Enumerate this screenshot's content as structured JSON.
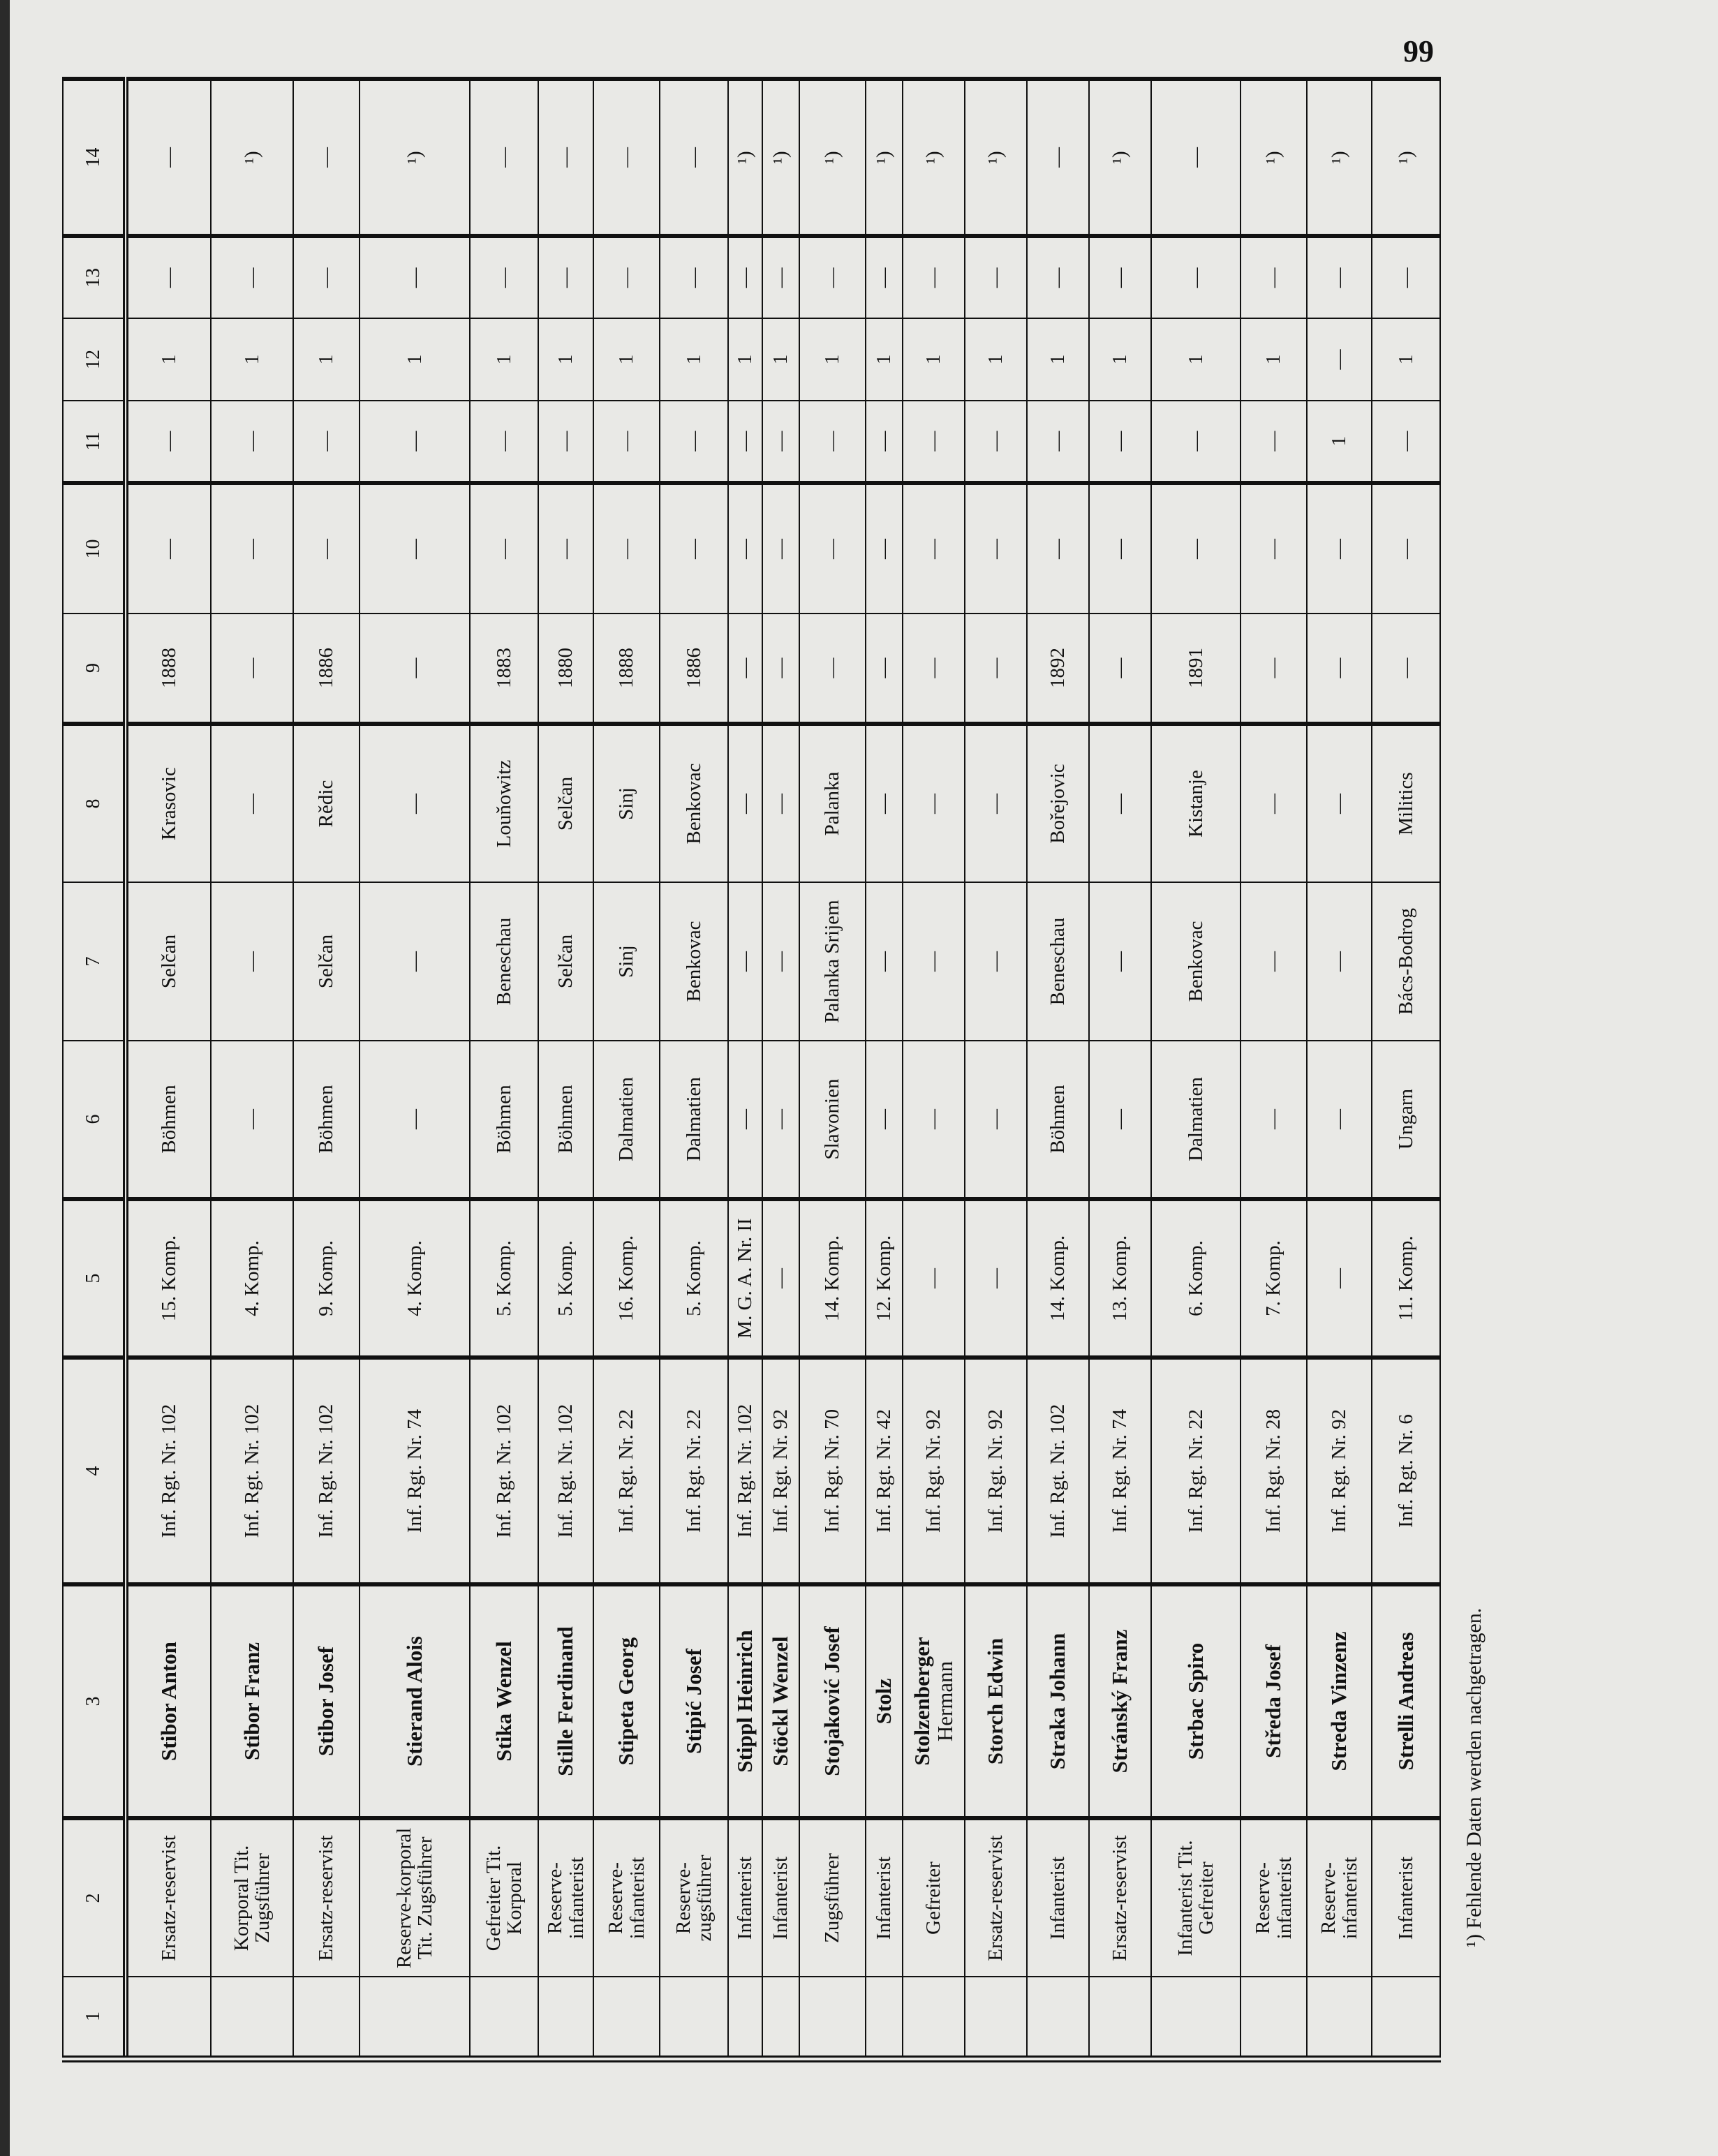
{
  "page_number": "99",
  "columns": [
    "1",
    "2",
    "3",
    "4",
    "5",
    "6",
    "7",
    "8",
    "9",
    "10",
    "11",
    "12",
    "13",
    "14"
  ],
  "rows": [
    [
      "",
      "Ersatz-reservist",
      "Stibor Anton",
      "Inf. Rgt. Nr. 102",
      "15. Komp.",
      "Böhmen",
      "Selčan",
      "Krasovic",
      "1888",
      "—",
      "—",
      "1",
      "—",
      "—"
    ],
    [
      "",
      "Korporal Tit. Zugsführer",
      "Stibor Franz",
      "Inf. Rgt. Nr. 102",
      "4. Komp.",
      "—",
      "—",
      "—",
      "—",
      "—",
      "—",
      "1",
      "—",
      "¹)"
    ],
    [
      "",
      "Ersatz-reservist",
      "Stibor Josef",
      "Inf. Rgt. Nr. 102",
      "9. Komp.",
      "Böhmen",
      "Selčan",
      "Rědic",
      "1886",
      "—",
      "—",
      "1",
      "—",
      "—"
    ],
    [
      "",
      "Reserve-korporal Tit. Zugsführer",
      "Stierand Alois",
      "Inf. Rgt. Nr. 74",
      "4. Komp.",
      "—",
      "—",
      "—",
      "—",
      "—",
      "—",
      "1",
      "—",
      "¹)"
    ],
    [
      "",
      "Gefreiter Tit. Korporal",
      "Stika Wenzel",
      "Inf. Rgt. Nr. 102",
      "5. Komp.",
      "Böhmen",
      "Beneschau",
      "Louňowitz",
      "1883",
      "—",
      "—",
      "1",
      "—",
      "—"
    ],
    [
      "",
      "Reserve-infanterist",
      "Stille Ferdinand",
      "Inf. Rgt. Nr. 102",
      "5. Komp.",
      "Böhmen",
      "Selčan",
      "Selčan",
      "1880",
      "—",
      "—",
      "1",
      "—",
      "—"
    ],
    [
      "",
      "Reserve-infanterist",
      "Stipeta Georg",
      "Inf. Rgt. Nr. 22",
      "16. Komp.",
      "Dalmatien",
      "Sinj",
      "Sinj",
      "1888",
      "—",
      "—",
      "1",
      "—",
      "—"
    ],
    [
      "",
      "Reserve-zugsführer",
      "Stipić Josef",
      "Inf. Rgt. Nr. 22",
      "5. Komp.",
      "Dalmatien",
      "Benkovac",
      "Benkovac",
      "1886",
      "—",
      "—",
      "1",
      "—",
      "—"
    ],
    [
      "",
      "Infanterist",
      "Stippl Heinrich",
      "Inf. Rgt. Nr. 102",
      "M. G. A. Nr. II",
      "—",
      "—",
      "—",
      "—",
      "—",
      "—",
      "1",
      "—",
      "¹)"
    ],
    [
      "",
      "Infanterist",
      "Stöckl Wenzel",
      "Inf. Rgt. Nr. 92",
      "—",
      "—",
      "—",
      "—",
      "—",
      "—",
      "—",
      "1",
      "—",
      "¹)"
    ],
    [
      "",
      "Zugsführer",
      "Stojaković Josef",
      "Inf. Rgt. Nr. 70",
      "14. Komp.",
      "Slavonien",
      "Palanka Srijem",
      "Palanka",
      "—",
      "—",
      "—",
      "1",
      "—",
      "¹)"
    ],
    [
      "",
      "Infanterist",
      "Stolz",
      "Inf. Rgt. Nr. 42",
      "12. Komp.",
      "—",
      "—",
      "—",
      "—",
      "—",
      "—",
      "1",
      "—",
      "¹)"
    ],
    [
      "",
      "Gefreiter",
      "Stolzenberger|Hermann",
      "Inf. Rgt. Nr. 92",
      "—",
      "—",
      "—",
      "—",
      "—",
      "—",
      "—",
      "1",
      "—",
      "¹)"
    ],
    [
      "",
      "Ersatz-reservist",
      "Storch Edwin",
      "Inf. Rgt. Nr. 92",
      "—",
      "—",
      "—",
      "—",
      "—",
      "—",
      "—",
      "1",
      "—",
      "¹)"
    ],
    [
      "",
      "Infanterist",
      "Straka Johann",
      "Inf. Rgt. Nr. 102",
      "14. Komp.",
      "Böhmen",
      "Beneschau",
      "Bořejovic",
      "1892",
      "—",
      "—",
      "1",
      "—",
      "—"
    ],
    [
      "",
      "Ersatz-reservist",
      "Stránský Franz",
      "Inf. Rgt. Nr. 74",
      "13. Komp.",
      "—",
      "—",
      "—",
      "—",
      "—",
      "—",
      "1",
      "—",
      "¹)"
    ],
    [
      "",
      "Infanterist Tit. Gefreiter",
      "Strbac Spiro",
      "Inf. Rgt. Nr. 22",
      "6. Komp.",
      "Dalmatien",
      "Benkovac",
      "Kistanje",
      "1891",
      "—",
      "—",
      "1",
      "—",
      "—"
    ],
    [
      "",
      "Reserve-infanterist",
      "Středa Josef",
      "Inf. Rgt. Nr. 28",
      "7. Komp.",
      "—",
      "—",
      "—",
      "—",
      "—",
      "—",
      "1",
      "—",
      "¹)"
    ],
    [
      "",
      "Reserve-infanterist",
      "Streda Vinzenz",
      "Inf. Rgt. Nr. 92",
      "—",
      "—",
      "—",
      "—",
      "—",
      "—",
      "1",
      "—",
      "—",
      "¹)"
    ],
    [
      "",
      "Infanterist",
      "Strelli Andreas",
      "Inf. Rgt. Nr. 6",
      "11. Komp.",
      "Ungarn",
      "Bács-Bodrog",
      "Militics",
      "—",
      "—",
      "—",
      "1",
      "—",
      "¹)"
    ]
  ],
  "footnote": "¹) Fehlende Daten werden nachgetragen."
}
